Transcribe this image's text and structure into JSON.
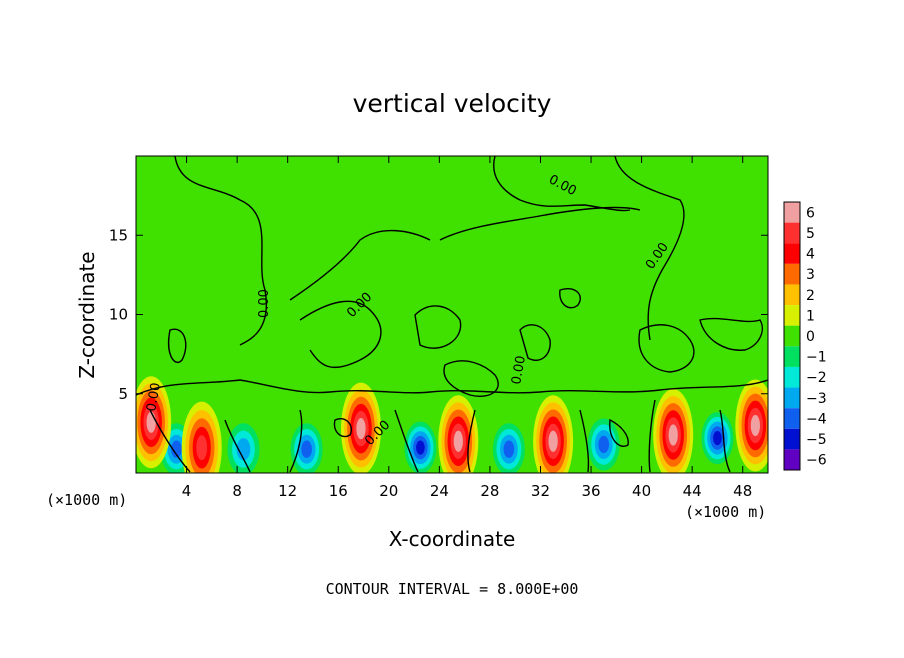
{
  "chart_data": {
    "type": "heatmap",
    "title": "vertical velocity",
    "xlabel": "X-coordinate",
    "ylabel": "Z-coordinate",
    "x_unit_left": "(×1000 m)",
    "x_unit_right": "(×1000 m)",
    "footer": "CONTOUR INTERVAL = 8.000E+00",
    "xlim": [
      0,
      50
    ],
    "ylim": [
      0,
      20
    ],
    "xticks": [
      4,
      8,
      12,
      16,
      20,
      24,
      28,
      32,
      36,
      40,
      44,
      48
    ],
    "xtick_labels": [
      "4",
      "8",
      "12",
      "16",
      "20",
      "24",
      "28",
      "32",
      "36",
      "40",
      "44",
      "48"
    ],
    "yticks": [
      5,
      10,
      15
    ],
    "ytick_labels": [
      "5",
      "10",
      "15"
    ],
    "contour_label": "0.00",
    "colorbar": {
      "levels": [
        6,
        5,
        4,
        3,
        2,
        1,
        0,
        -1,
        -2,
        -3,
        -4,
        -5,
        -6
      ],
      "labels": [
        "6",
        "5",
        "4",
        "3",
        "2",
        "1",
        "0",
        "−1",
        "−2",
        "−3",
        "−4",
        "−5",
        "−6"
      ],
      "colors": [
        "#f0a0a0",
        "#ff3030",
        "#ff0000",
        "#ff6a00",
        "#ffc000",
        "#d7f000",
        "#40e000",
        "#00e060",
        "#00e8d8",
        "#00a8f0",
        "#1060f0",
        "#0010d0",
        "#6000c0"
      ]
    },
    "updraft_cores": [
      {
        "x": 1.2,
        "z": 3.2,
        "value": 6
      },
      {
        "x": 5.2,
        "z": 1.6,
        "value": 5
      },
      {
        "x": 17.8,
        "z": 2.8,
        "value": 6
      },
      {
        "x": 25.5,
        "z": 2.0,
        "value": 6
      },
      {
        "x": 33.0,
        "z": 2.0,
        "value": 6
      },
      {
        "x": 42.5,
        "z": 2.4,
        "value": 6
      },
      {
        "x": 49.0,
        "z": 3.0,
        "value": 6
      }
    ],
    "downdraft_cores": [
      {
        "x": 3.2,
        "z": 1.5,
        "value": -4
      },
      {
        "x": 8.5,
        "z": 1.5,
        "value": -3
      },
      {
        "x": 13.5,
        "z": 1.5,
        "value": -4
      },
      {
        "x": 22.5,
        "z": 1.6,
        "value": -5
      },
      {
        "x": 29.5,
        "z": 1.5,
        "value": -4
      },
      {
        "x": 37.0,
        "z": 1.8,
        "value": -4
      },
      {
        "x": 46.0,
        "z": 2.2,
        "value": -5
      }
    ],
    "colors": {
      "background_field": "#40e000",
      "contour": "#000000"
    }
  }
}
